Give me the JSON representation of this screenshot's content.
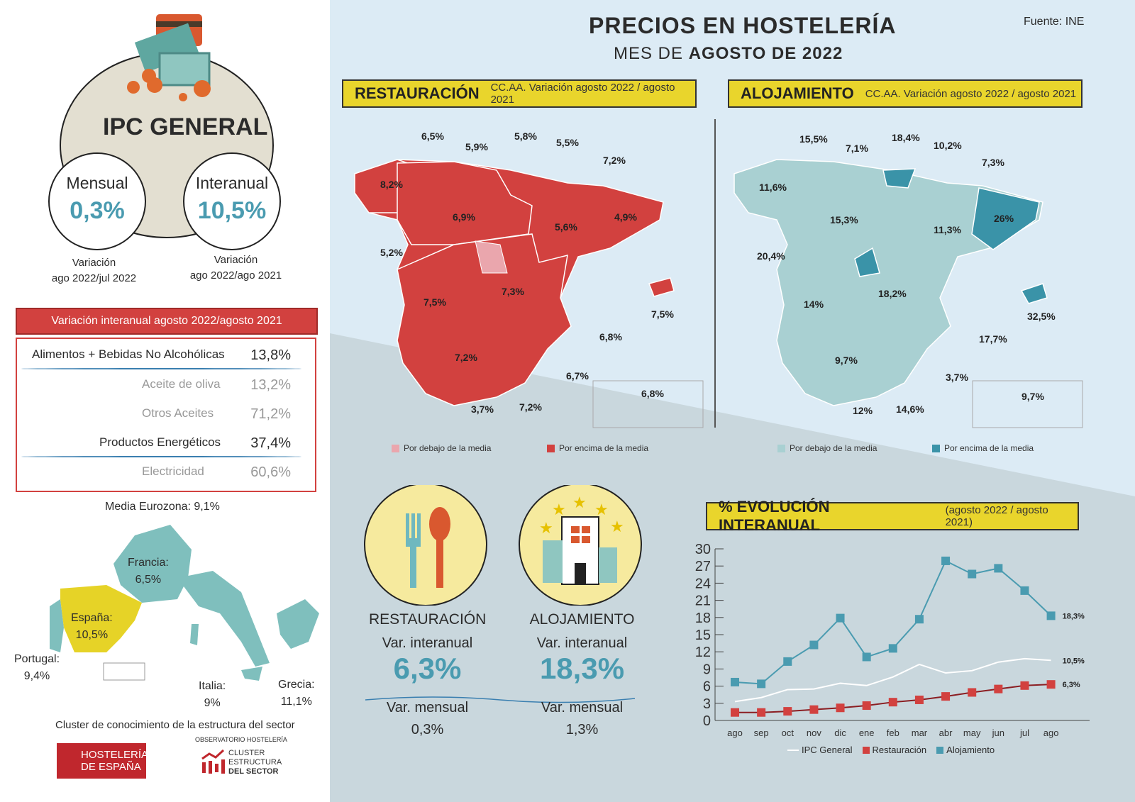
{
  "header": {
    "title": "PRECIOS EN HOSTELERÍA",
    "subtitle_prefix": "MES DE ",
    "subtitle_bold": "AGOSTO DE 2022",
    "source": "Fuente: INE"
  },
  "ipc": {
    "title": "IPC GENERAL",
    "monthly": {
      "label": "Mensual",
      "value": "0,3%",
      "caption1": "Variación",
      "caption2": "ago 2022/jul 2022"
    },
    "annual": {
      "label": "Interanual",
      "value": "10,5%",
      "caption1": "Variación",
      "caption2": "ago 2022/ago 2021"
    }
  },
  "table": {
    "title": "Variación interanual agosto 2022/agosto 2021",
    "rows": [
      {
        "label": "Alimentos + Bebidas No Alcohólicas",
        "value": "13,8%",
        "main": true
      },
      {
        "label": "Aceite de oliva",
        "value": "13,2%",
        "main": false
      },
      {
        "label": "Otros Aceites",
        "value": "71,2%",
        "main": false
      },
      {
        "label": "Productos Energéticos",
        "value": "37,4%",
        "main": true
      },
      {
        "label": "Electricidad",
        "value": "60,6%",
        "main": false
      }
    ]
  },
  "eurozone": {
    "media": "Media Eurozona: 9,1%",
    "countries": [
      {
        "name": "Francia:",
        "value": "6,5%"
      },
      {
        "name": "España:",
        "value": "10,5%"
      },
      {
        "name": "Portugal:",
        "value": "9,4%"
      },
      {
        "name": "Italia:",
        "value": "9%"
      },
      {
        "name": "Grecia:",
        "value": "11,1%"
      }
    ],
    "colors": {
      "spain": "#e6d327",
      "others": "#7fbfbd"
    }
  },
  "footer": {
    "cluster_text": "Cluster de conocimiento de la estructura del sector",
    "logo1_line1": "HOSTELERÍA",
    "logo1_line2": "DE ESPAÑA",
    "obs": "OBSERVATORIO HOSTELERÍA",
    "logo2_line1": "CLUSTER",
    "logo2_line2": "ESTRUCTURA",
    "logo2_line3": "DEL SECTOR"
  },
  "restauracion_map": {
    "title": "RESTAURACIÓN",
    "subtitle": "CC.AA. Variación agosto 2022 / agosto 2021",
    "labels": [
      "6,5%",
      "5,9%",
      "5,8%",
      "5,5%",
      "7,2%",
      "8,2%",
      "6,9%",
      "5,6%",
      "4,9%",
      "5,2%",
      "7,5%",
      "7,3%",
      "7,5%",
      "6,8%",
      "7,2%",
      "6,7%",
      "6,8%",
      "3,7%",
      "7,2%"
    ],
    "legend_below": "Por debajo de la media",
    "legend_above": "Por encima de la media",
    "colors": {
      "below": "#eaa6ad",
      "above": "#d2413f"
    }
  },
  "alojamiento_map": {
    "title": "ALOJAMIENTO",
    "subtitle": "CC.AA. Variación agosto 2022 / agosto 2021",
    "labels": [
      "15,5%",
      "7,1%",
      "18,4%",
      "10,2%",
      "7,3%",
      "11,6%",
      "15,3%",
      "11,3%",
      "26%",
      "20,4%",
      "14%",
      "18,2%",
      "32,5%",
      "17,7%",
      "9,7%",
      "3,7%",
      "9,7%",
      "12%",
      "14,6%"
    ],
    "legend_below": "Por debajo de la media",
    "legend_above": "Por encima de la media",
    "colors": {
      "below": "#a9d0d2",
      "above": "#3a93a8"
    }
  },
  "summary": {
    "rest": {
      "title": "RESTAURACIÓN",
      "var_label": "Var. interanual",
      "var_value": "6,3%",
      "month_label": "Var. mensual",
      "month_value": "0,3%"
    },
    "aloj": {
      "title": "ALOJAMIENTO",
      "var_label": "Var. interanual",
      "var_value": "18,3%",
      "month_label": "Var. mensual",
      "month_value": "1,3%"
    }
  },
  "chart_data": {
    "type": "line",
    "title": "% EVOLUCIÓN INTERANUAL",
    "subtitle": "(agosto 2022 / agosto 2021)",
    "categories": [
      "ago",
      "sep",
      "oct",
      "nov",
      "dic",
      "ene",
      "feb",
      "mar",
      "abr",
      "may",
      "jun",
      "jul",
      "ago"
    ],
    "ylim": [
      0,
      30
    ],
    "yticks": [
      0,
      3,
      6,
      9,
      12,
      15,
      18,
      21,
      24,
      27,
      30
    ],
    "legend_placement": "bottom",
    "series": [
      {
        "name": "IPC General",
        "color": "#ffffff",
        "values": [
          3.3,
          4.0,
          5.4,
          5.5,
          6.5,
          6.1,
          7.6,
          9.8,
          8.3,
          8.7,
          10.2,
          10.8,
          10.5
        ],
        "end_label": "10,5%"
      },
      {
        "name": "Restauración",
        "color": "#d2413f",
        "values": [
          1.4,
          1.4,
          1.6,
          1.9,
          2.2,
          2.6,
          3.2,
          3.6,
          4.2,
          4.9,
          5.5,
          6.1,
          6.3
        ],
        "end_label": "6,3%"
      },
      {
        "name": "Alojamiento",
        "color": "#4a9bb0",
        "values": [
          6.7,
          6.4,
          10.3,
          13.2,
          17.9,
          11.1,
          12.6,
          17.7,
          27.9,
          25.6,
          26.6,
          22.7,
          18.3
        ],
        "end_label": "18,3%"
      }
    ]
  }
}
